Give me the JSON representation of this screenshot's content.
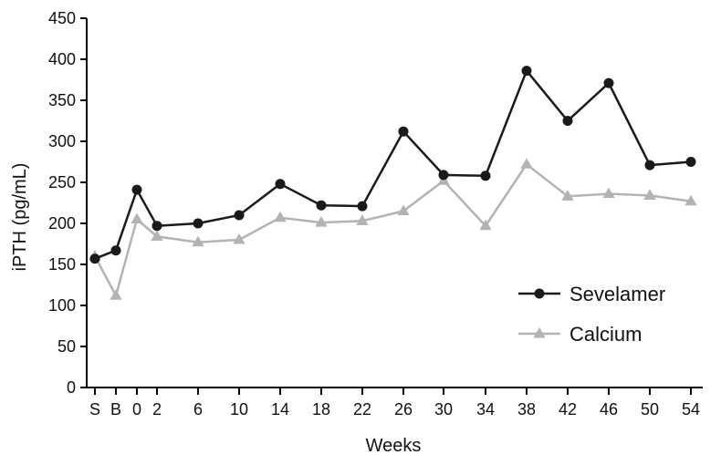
{
  "chart_data": {
    "type": "line",
    "xlabel": "Weeks",
    "ylabel": "iPTH  (pg/mL)",
    "categories": [
      "S",
      "B",
      "0",
      "2",
      "6",
      "10",
      "14",
      "18",
      "22",
      "26",
      "30",
      "34",
      "38",
      "42",
      "46",
      "50",
      "54"
    ],
    "y_ticks": [
      "0",
      "50",
      "100",
      "150",
      "200",
      "250",
      "300",
      "350",
      "400",
      "450"
    ],
    "ylim": [
      0,
      450
    ],
    "grid": false,
    "legend_position": "bottom-right",
    "series": [
      {
        "name": "Sevelamer",
        "marker": "circle",
        "color": "#1a1a1a",
        "values": [
          157,
          167,
          241,
          197,
          200,
          210,
          248,
          222,
          221,
          312,
          259,
          258,
          386,
          325,
          371,
          271,
          275
        ]
      },
      {
        "name": "Calcium",
        "marker": "triangle",
        "color": "#b3b3b3",
        "values": [
          160,
          112,
          205,
          184,
          177,
          180,
          207,
          201,
          203,
          215,
          252,
          197,
          272,
          233,
          236,
          234,
          227
        ]
      }
    ]
  }
}
